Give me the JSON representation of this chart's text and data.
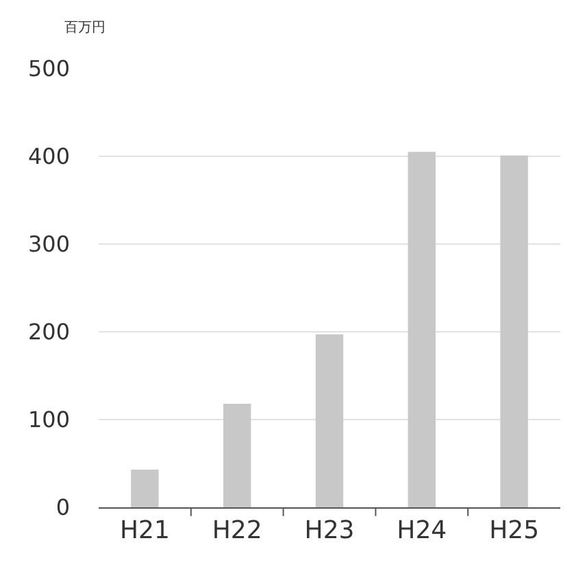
{
  "chart_data": {
    "type": "bar",
    "ylabel": "百万円",
    "categories": [
      "H21",
      "H22",
      "H23",
      "H24",
      "H25"
    ],
    "values": [
      43,
      118,
      197,
      405,
      401
    ],
    "color": "#c8c8c8",
    "ylim": [
      0,
      500
    ],
    "yticks": [
      0,
      100,
      200,
      300,
      400,
      500
    ],
    "grid": "y",
    "legend": false
  }
}
